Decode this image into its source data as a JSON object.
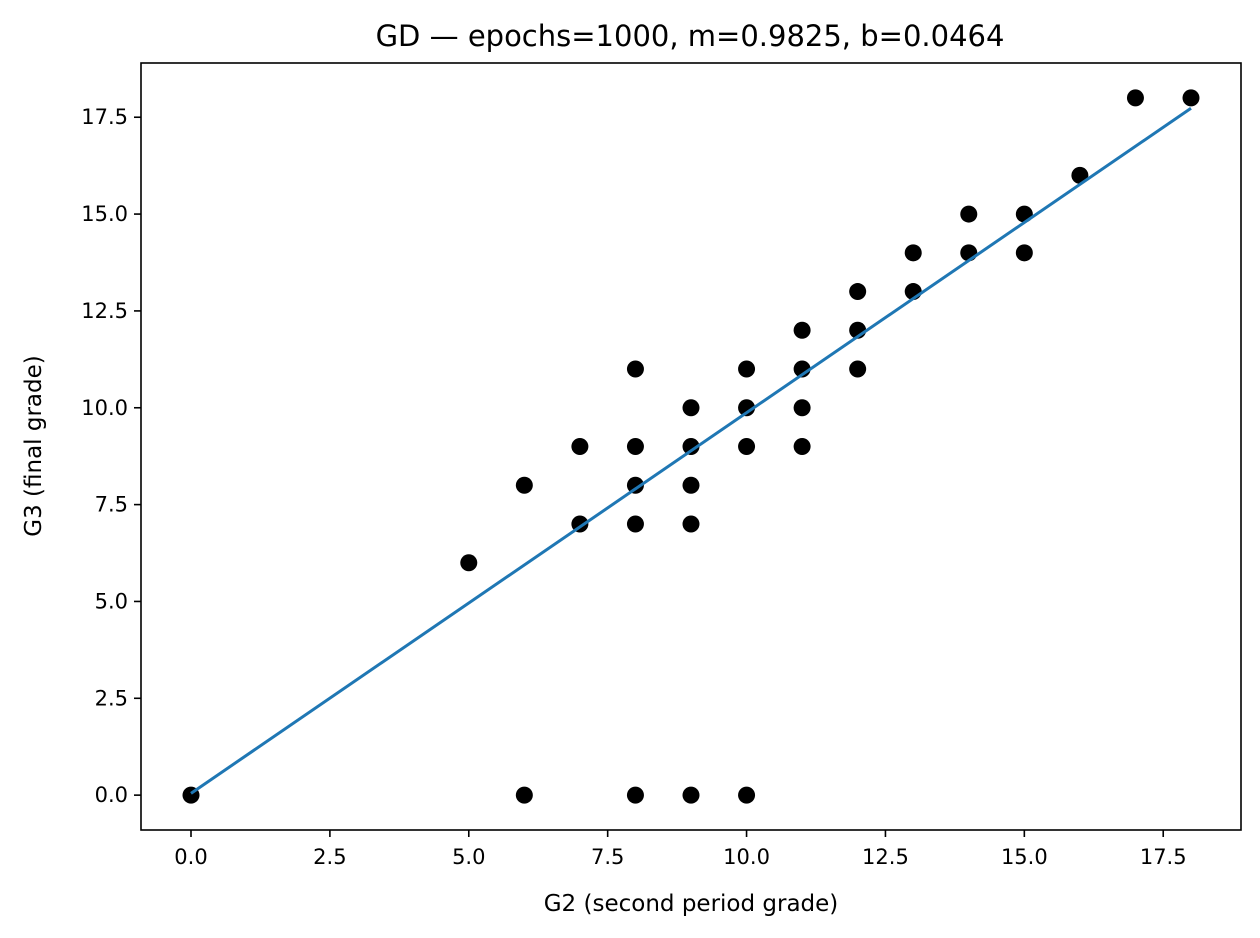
{
  "chart_data": {
    "type": "scatter",
    "title": "GD — epochs=1000, m=0.9825, b=0.0464",
    "xlabel": "G2 (second period grade)",
    "ylabel": "G3 (final grade)",
    "xlim": [
      -0.9,
      18.9
    ],
    "ylim": [
      -0.9,
      18.9
    ],
    "xticks": [
      0.0,
      2.5,
      5.0,
      7.5,
      10.0,
      12.5,
      15.0,
      17.5
    ],
    "xtick_labels": [
      "0.0",
      "2.5",
      "5.0",
      "7.5",
      "10.0",
      "12.5",
      "15.0",
      "17.5"
    ],
    "yticks": [
      0.0,
      2.5,
      5.0,
      7.5,
      10.0,
      12.5,
      15.0,
      17.5
    ],
    "ytick_labels": [
      "0.0",
      "2.5",
      "5.0",
      "7.5",
      "10.0",
      "12.5",
      "15.0",
      "17.5"
    ],
    "grid": false,
    "series": [
      {
        "kind": "scatter",
        "color": "#000000",
        "points": [
          [
            0,
            0
          ],
          [
            5,
            6
          ],
          [
            6,
            8
          ],
          [
            6,
            0
          ],
          [
            7,
            9
          ],
          [
            7,
            7
          ],
          [
            8,
            11
          ],
          [
            8,
            9
          ],
          [
            8,
            8
          ],
          [
            8,
            7
          ],
          [
            8,
            0
          ],
          [
            9,
            10
          ],
          [
            9,
            9
          ],
          [
            9,
            8
          ],
          [
            9,
            7
          ],
          [
            9,
            0
          ],
          [
            10,
            11
          ],
          [
            10,
            10
          ],
          [
            10,
            9
          ],
          [
            10,
            0
          ],
          [
            11,
            12
          ],
          [
            11,
            11
          ],
          [
            11,
            10
          ],
          [
            11,
            9
          ],
          [
            12,
            13
          ],
          [
            12,
            12
          ],
          [
            12,
            11
          ],
          [
            13,
            14
          ],
          [
            13,
            13
          ],
          [
            14,
            15
          ],
          [
            14,
            14
          ],
          [
            15,
            15
          ],
          [
            15,
            14
          ],
          [
            16,
            16
          ],
          [
            17,
            18
          ],
          [
            18,
            18
          ]
        ]
      },
      {
        "kind": "line",
        "color": "#1f77b4",
        "slope": 0.9825,
        "intercept": 0.0464,
        "x_range": [
          0,
          18
        ]
      }
    ]
  }
}
